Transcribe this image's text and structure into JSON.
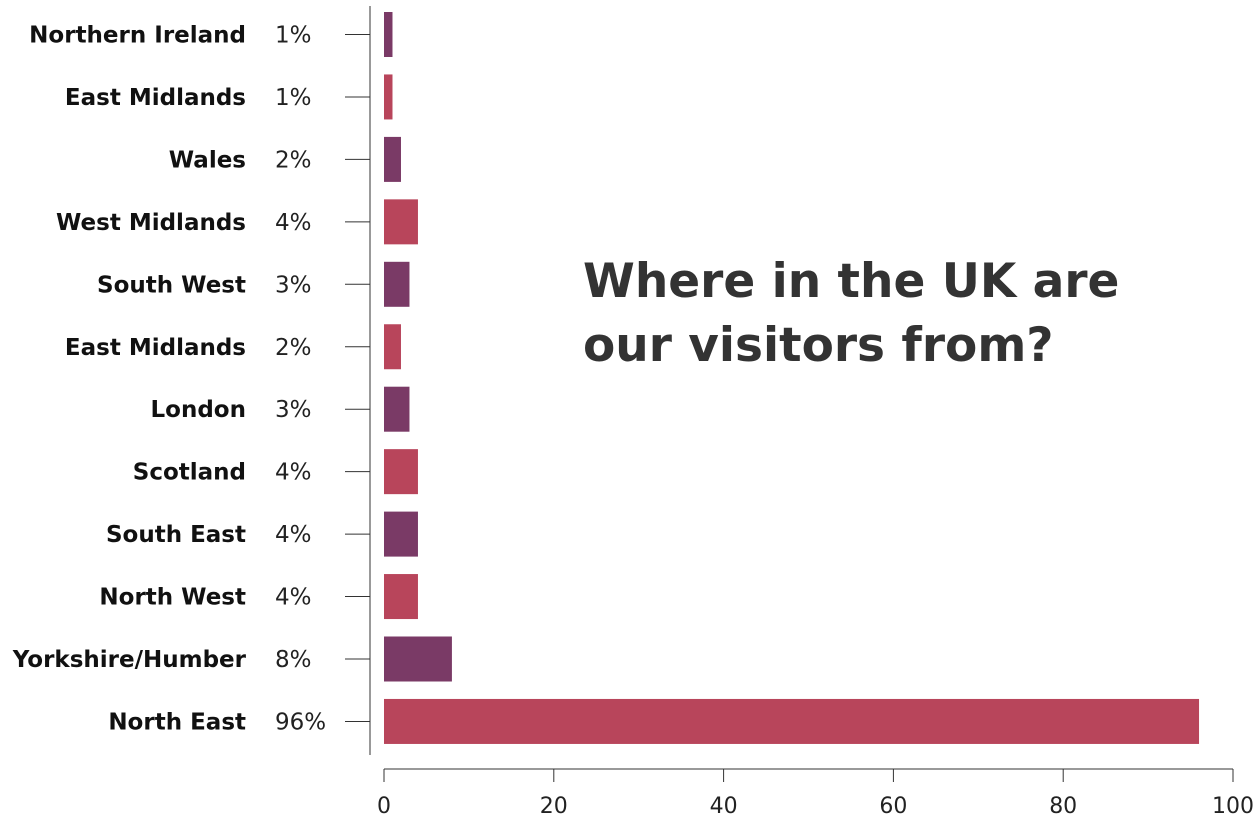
{
  "title": {
    "line1": "Where in the UK are",
    "line2": "our visitors from?"
  },
  "colors": {
    "purple": "#7a3a66",
    "red": "#b8455b",
    "axis": "#333333"
  },
  "chart_data": {
    "type": "bar",
    "orientation": "horizontal",
    "title": "Where in the UK are our visitors from?",
    "categories": [
      "Northern Ireland",
      "East Midlands",
      "Wales",
      "West Midlands",
      "South West",
      "East Midlands",
      "London",
      "Scotland",
      "South East",
      "North West",
      "Yorkshire/Humber",
      "North East"
    ],
    "values": [
      1,
      1,
      2,
      4,
      3,
      2,
      3,
      4,
      4,
      4,
      8,
      96
    ],
    "value_labels": [
      "1%",
      "1%",
      "2%",
      "4%",
      "3%",
      "2%",
      "3%",
      "4%",
      "4%",
      "4%",
      "8%",
      "96%"
    ],
    "bar_colors": [
      "#7a3a66",
      "#b8455b",
      "#7a3a66",
      "#b8455b",
      "#7a3a66",
      "#b8455b",
      "#7a3a66",
      "#b8455b",
      "#7a3a66",
      "#b8455b",
      "#7a3a66",
      "#b8455b"
    ],
    "xlim": [
      0,
      100
    ],
    "xticks": [
      0,
      20,
      40,
      60,
      80,
      100
    ],
    "xtick_labels": [
      "0",
      "20",
      "40",
      "60",
      "80",
      "100"
    ],
    "xlabel": "",
    "ylabel": "",
    "grid": false,
    "legend": "none"
  }
}
